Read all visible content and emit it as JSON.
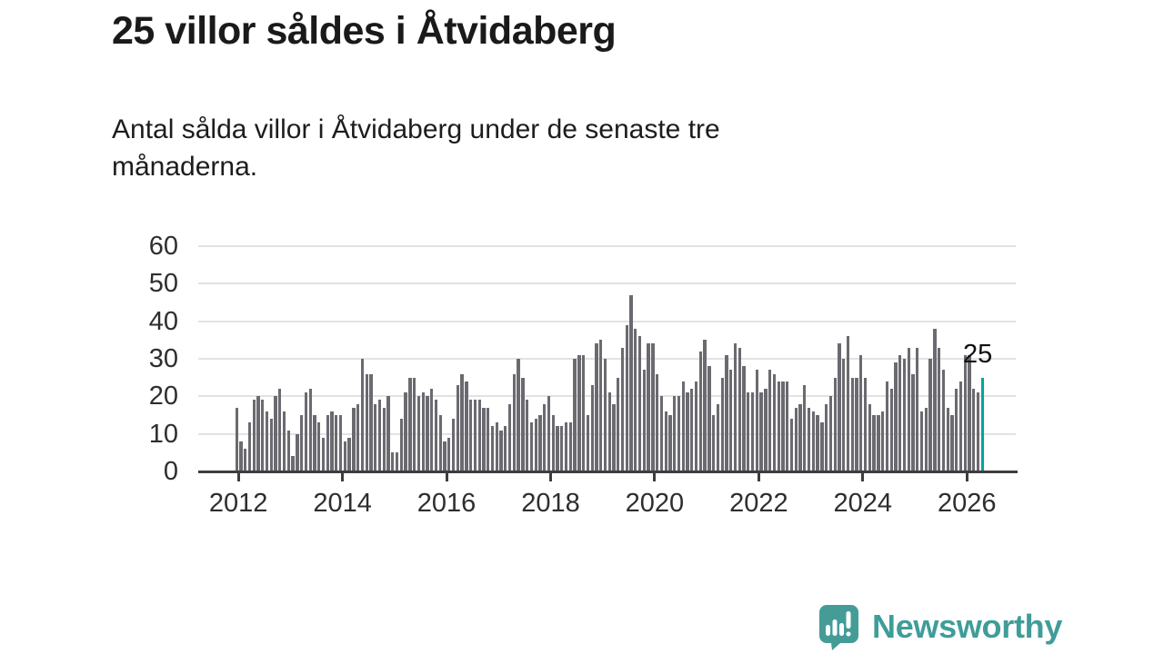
{
  "header": {
    "title": "25 villor såldes i Åtvidaberg",
    "subtitle_line1": "Antal sålda villor i Åtvidaberg under de senaste tre",
    "subtitle_line2": "månaderna."
  },
  "chart_data": {
    "type": "bar",
    "description": "Monthly bars, rolling three-month number of houses sold, Jan 2012 - spring 2026",
    "x_tick_labels": [
      "2012",
      "2014",
      "2016",
      "2018",
      "2020",
      "2022",
      "2024",
      "2026"
    ],
    "y_ticks": [
      0,
      10,
      20,
      30,
      40,
      50,
      60
    ],
    "ylim": [
      0,
      60
    ],
    "grid": "horizontal",
    "values": [
      17,
      8,
      6,
      13,
      19,
      20,
      19,
      16,
      14,
      20,
      22,
      16,
      11,
      4,
      10,
      15,
      21,
      22,
      15,
      13,
      9,
      15,
      16,
      15,
      15,
      8,
      9,
      17,
      18,
      30,
      26,
      26,
      18,
      19,
      17,
      20,
      5,
      5,
      14,
      21,
      25,
      25,
      20,
      21,
      20,
      22,
      19,
      15,
      8,
      9,
      14,
      23,
      26,
      24,
      19,
      19,
      19,
      17,
      17,
      12,
      13,
      11,
      12,
      18,
      26,
      30,
      25,
      19,
      13,
      14,
      15,
      18,
      20,
      15,
      12,
      12,
      13,
      13,
      30,
      31,
      31,
      15,
      23,
      34,
      35,
      30,
      21,
      18,
      25,
      33,
      39,
      47,
      38,
      36,
      27,
      34,
      34,
      26,
      20,
      16,
      15,
      20,
      20,
      24,
      21,
      22,
      24,
      32,
      35,
      28,
      15,
      18,
      25,
      31,
      27,
      34,
      33,
      28,
      21,
      21,
      27,
      21,
      22,
      27,
      26,
      24,
      24,
      24,
      14,
      17,
      18,
      23,
      17,
      16,
      15,
      13,
      18,
      20,
      25,
      34,
      30,
      36,
      25,
      25,
      31,
      25,
      18,
      15,
      15,
      16,
      24,
      22,
      29,
      31,
      30,
      33,
      26,
      33,
      16,
      17,
      30,
      38,
      33,
      27,
      17,
      15,
      22,
      24,
      31,
      31,
      22,
      21,
      25
    ],
    "months_per_tick": 24,
    "highlight_index": 172,
    "highlight_value_label": "25",
    "bar_color": "#6a6a70",
    "highlight_color": "#00a49e"
  },
  "footer": {
    "brand": "Newsworthy",
    "brand_color": "#3f9d99"
  }
}
